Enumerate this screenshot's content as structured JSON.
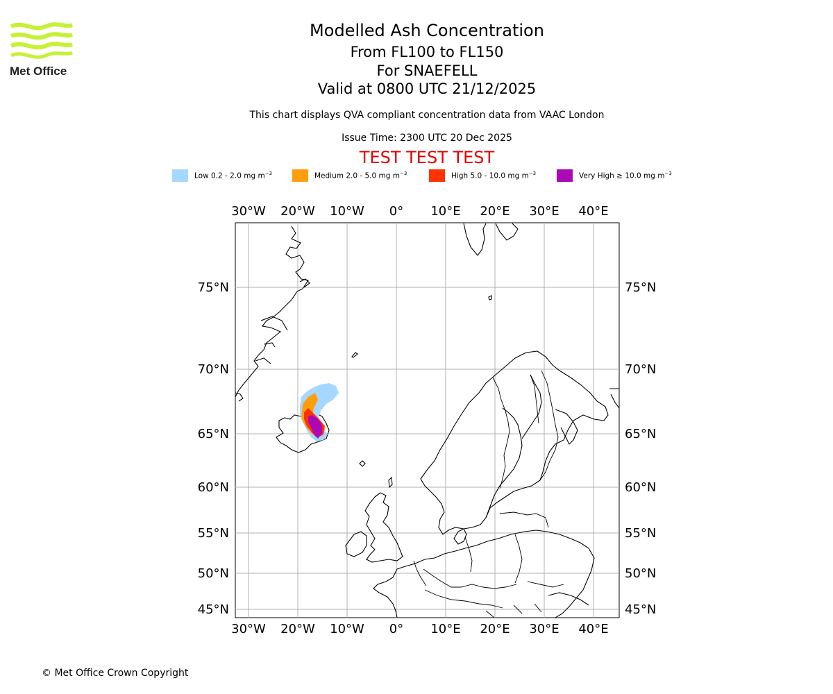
{
  "header": {
    "title": "Modelled Ash Concentration",
    "levels": "From FL100 to FL150",
    "volcano": "For SNAEFELL",
    "valid": "Valid at 0800 UTC 21/12/2025",
    "description": "This chart displays QVA compliant concentration data from VAAC London",
    "issue_time": "Issue Time: 2300 UTC 20 Dec 2025",
    "test_banner": "TEST TEST TEST"
  },
  "logo": {
    "text": "Met Office"
  },
  "legend": [
    {
      "label": "Low 0.2 - 2.0 mg m",
      "unit_exp": "−3",
      "color": "#a6d8ff"
    },
    {
      "label": "Medium 2.0 - 5.0 mg m",
      "unit_exp": "−3",
      "color": "#ff9e0d"
    },
    {
      "label": "High 5.0 - 10.0 mg m",
      "unit_exp": "−3",
      "color": "#ff3300"
    },
    {
      "label": "Very High ≥ 10.0 mg m",
      "unit_exp": "−3",
      "color": "#ab09b6"
    }
  ],
  "map": {
    "lon_ticks": [
      "30°W",
      "20°W",
      "10°W",
      "0°",
      "10°E",
      "20°E",
      "30°E",
      "40°E"
    ],
    "lat_ticks": [
      "75°N",
      "70°N",
      "65°N",
      "60°N",
      "55°N",
      "50°N",
      "45°N"
    ]
  },
  "footer": {
    "copyright": "© Met Office Crown Copyright"
  }
}
